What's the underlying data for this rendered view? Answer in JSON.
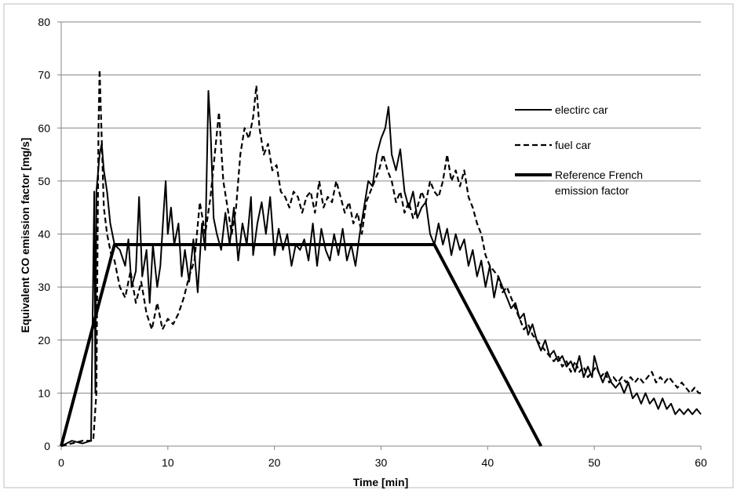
{
  "chart_data": {
    "type": "line",
    "xlabel": "Time [min]",
    "ylabel": "Equivalent CO emission factor [mg/s]",
    "xlim": [
      0,
      60
    ],
    "ylim": [
      0,
      80
    ],
    "xticks": [
      "0",
      "10",
      "20",
      "30",
      "40",
      "50",
      "60"
    ],
    "yticks": [
      "0",
      "10",
      "20",
      "30",
      "40",
      "50",
      "60",
      "70",
      "80"
    ],
    "grid": "horizontal",
    "legend_position": "right",
    "series": [
      {
        "name": "electirc car",
        "style": "solid-thin",
        "color": "#000000",
        "points": [
          [
            0,
            0
          ],
          [
            1,
            1
          ],
          [
            2,
            0.5
          ],
          [
            2.8,
            1
          ],
          [
            3.1,
            48
          ],
          [
            3.2,
            10
          ],
          [
            3.3,
            48
          ],
          [
            3.6,
            55
          ],
          [
            3.8,
            57
          ],
          [
            4.0,
            52
          ],
          [
            4.3,
            48
          ],
          [
            4.6,
            42
          ],
          [
            5,
            38
          ],
          [
            5.5,
            37
          ],
          [
            6,
            34
          ],
          [
            6.3,
            39
          ],
          [
            6.6,
            30
          ],
          [
            7,
            33
          ],
          [
            7.3,
            47
          ],
          [
            7.6,
            32
          ],
          [
            8,
            37
          ],
          [
            8.3,
            27
          ],
          [
            8.6,
            38
          ],
          [
            9,
            30
          ],
          [
            9.3,
            34
          ],
          [
            9.6,
            44
          ],
          [
            9.8,
            50
          ],
          [
            10,
            40
          ],
          [
            10.3,
            45
          ],
          [
            10.6,
            38
          ],
          [
            11,
            42
          ],
          [
            11.3,
            32
          ],
          [
            11.6,
            37
          ],
          [
            12,
            31
          ],
          [
            12.4,
            39
          ],
          [
            12.8,
            29
          ],
          [
            13.2,
            42
          ],
          [
            13.5,
            37
          ],
          [
            13.8,
            67
          ],
          [
            14,
            60
          ],
          [
            14.3,
            43
          ],
          [
            14.6,
            40
          ],
          [
            15,
            37
          ],
          [
            15.4,
            44
          ],
          [
            15.8,
            38
          ],
          [
            16.2,
            45
          ],
          [
            16.6,
            35
          ],
          [
            17,
            42
          ],
          [
            17.4,
            38
          ],
          [
            17.8,
            47
          ],
          [
            18,
            36
          ],
          [
            18.4,
            42
          ],
          [
            18.8,
            46
          ],
          [
            19.2,
            40
          ],
          [
            19.6,
            47
          ],
          [
            20,
            36
          ],
          [
            20.4,
            41
          ],
          [
            20.8,
            37
          ],
          [
            21.2,
            40
          ],
          [
            21.6,
            34
          ],
          [
            22,
            38
          ],
          [
            22.4,
            37
          ],
          [
            22.8,
            39
          ],
          [
            23.2,
            35
          ],
          [
            23.6,
            42
          ],
          [
            24,
            34
          ],
          [
            24.4,
            41
          ],
          [
            24.8,
            37
          ],
          [
            25.2,
            35
          ],
          [
            25.6,
            40
          ],
          [
            26,
            36
          ],
          [
            26.4,
            41
          ],
          [
            26.8,
            35
          ],
          [
            27.2,
            38
          ],
          [
            27.6,
            34
          ],
          [
            28,
            40
          ],
          [
            28.4,
            45
          ],
          [
            28.8,
            50
          ],
          [
            29.2,
            49
          ],
          [
            29.6,
            55
          ],
          [
            30,
            58
          ],
          [
            30.4,
            60
          ],
          [
            30.7,
            64
          ],
          [
            31,
            55
          ],
          [
            31.4,
            52
          ],
          [
            31.8,
            56
          ],
          [
            32.2,
            48
          ],
          [
            32.6,
            45
          ],
          [
            33,
            48
          ],
          [
            33.4,
            43
          ],
          [
            33.8,
            45
          ],
          [
            34.2,
            46
          ],
          [
            34.6,
            40
          ],
          [
            35,
            38
          ],
          [
            35.4,
            42
          ],
          [
            35.8,
            38
          ],
          [
            36.2,
            41
          ],
          [
            36.6,
            36
          ],
          [
            37,
            40
          ],
          [
            37.4,
            37
          ],
          [
            37.8,
            39
          ],
          [
            38.2,
            34
          ],
          [
            38.6,
            37
          ],
          [
            39,
            32
          ],
          [
            39.4,
            35
          ],
          [
            39.8,
            30
          ],
          [
            40.2,
            34
          ],
          [
            40.6,
            28
          ],
          [
            41,
            32
          ],
          [
            41.4,
            30
          ],
          [
            41.8,
            28
          ],
          [
            42.2,
            26
          ],
          [
            42.6,
            27
          ],
          [
            43,
            24
          ],
          [
            43.4,
            25
          ],
          [
            43.8,
            21
          ],
          [
            44.2,
            23
          ],
          [
            44.6,
            20
          ],
          [
            45,
            18
          ],
          [
            45.4,
            20
          ],
          [
            45.8,
            17
          ],
          [
            46.2,
            18
          ],
          [
            46.6,
            16
          ],
          [
            47,
            17
          ],
          [
            47.4,
            15
          ],
          [
            47.8,
            16
          ],
          [
            48.2,
            14
          ],
          [
            48.6,
            17
          ],
          [
            49,
            13
          ],
          [
            49.4,
            15
          ],
          [
            49.8,
            13
          ],
          [
            50,
            17
          ],
          [
            50.4,
            14
          ],
          [
            50.8,
            12
          ],
          [
            51.2,
            14
          ],
          [
            51.6,
            12
          ],
          [
            52,
            11
          ],
          [
            52.4,
            12
          ],
          [
            52.8,
            10
          ],
          [
            53.2,
            12
          ],
          [
            53.6,
            9
          ],
          [
            54,
            10
          ],
          [
            54.4,
            8
          ],
          [
            54.8,
            10
          ],
          [
            55.2,
            8
          ],
          [
            55.6,
            9
          ],
          [
            56,
            7
          ],
          [
            56.4,
            9
          ],
          [
            56.8,
            7
          ],
          [
            57.2,
            8
          ],
          [
            57.6,
            6
          ],
          [
            58,
            7
          ],
          [
            58.4,
            6
          ],
          [
            58.8,
            7
          ],
          [
            59.2,
            6
          ],
          [
            59.6,
            7
          ],
          [
            60,
            6
          ]
        ]
      },
      {
        "name": "fuel car",
        "style": "dashed",
        "color": "#000000",
        "points": [
          [
            0,
            0
          ],
          [
            1,
            0.5
          ],
          [
            2,
            1
          ],
          [
            3,
            1
          ],
          [
            3.3,
            10
          ],
          [
            3.5,
            60
          ],
          [
            3.6,
            71
          ],
          [
            3.8,
            58
          ],
          [
            4.0,
            45
          ],
          [
            4.3,
            40
          ],
          [
            4.7,
            36
          ],
          [
            5,
            35
          ],
          [
            5.5,
            30
          ],
          [
            6,
            28
          ],
          [
            6.5,
            33
          ],
          [
            7,
            27
          ],
          [
            7.5,
            31
          ],
          [
            8,
            25
          ],
          [
            8.5,
            22
          ],
          [
            9,
            27
          ],
          [
            9.5,
            22
          ],
          [
            10,
            24
          ],
          [
            10.5,
            23
          ],
          [
            11,
            25
          ],
          [
            11.5,
            28
          ],
          [
            12,
            32
          ],
          [
            12.5,
            35
          ],
          [
            13,
            46
          ],
          [
            13.5,
            40
          ],
          [
            14,
            47
          ],
          [
            14.4,
            55
          ],
          [
            14.8,
            63
          ],
          [
            15.2,
            50
          ],
          [
            15.6,
            45
          ],
          [
            16,
            40
          ],
          [
            16.4,
            45
          ],
          [
            16.8,
            55
          ],
          [
            17.2,
            60
          ],
          [
            17.6,
            58
          ],
          [
            18,
            62
          ],
          [
            18.3,
            68
          ],
          [
            18.6,
            60
          ],
          [
            19,
            55
          ],
          [
            19.4,
            57
          ],
          [
            19.8,
            52
          ],
          [
            20.2,
            53
          ],
          [
            20.6,
            48
          ],
          [
            21,
            47
          ],
          [
            21.4,
            45
          ],
          [
            21.8,
            48
          ],
          [
            22.2,
            47
          ],
          [
            22.6,
            44
          ],
          [
            23,
            47
          ],
          [
            23.4,
            48
          ],
          [
            23.8,
            44
          ],
          [
            24.2,
            50
          ],
          [
            24.6,
            45
          ],
          [
            25,
            47
          ],
          [
            25.4,
            46
          ],
          [
            25.8,
            50
          ],
          [
            26.2,
            47
          ],
          [
            26.6,
            44
          ],
          [
            27,
            46
          ],
          [
            27.4,
            42
          ],
          [
            27.8,
            44
          ],
          [
            28.2,
            40
          ],
          [
            28.6,
            46
          ],
          [
            29,
            48
          ],
          [
            29.4,
            50
          ],
          [
            29.8,
            52
          ],
          [
            30.2,
            55
          ],
          [
            30.6,
            52
          ],
          [
            31,
            50
          ],
          [
            31.4,
            46
          ],
          [
            31.8,
            48
          ],
          [
            32.2,
            44
          ],
          [
            32.6,
            46
          ],
          [
            33,
            43
          ],
          [
            33.4,
            45
          ],
          [
            33.8,
            48
          ],
          [
            34.2,
            46
          ],
          [
            34.6,
            50
          ],
          [
            35,
            48
          ],
          [
            35.4,
            47
          ],
          [
            35.8,
            50
          ],
          [
            36.2,
            55
          ],
          [
            36.6,
            50
          ],
          [
            37,
            52
          ],
          [
            37.4,
            49
          ],
          [
            37.8,
            52
          ],
          [
            38.2,
            47
          ],
          [
            38.6,
            45
          ],
          [
            39,
            42
          ],
          [
            39.4,
            40
          ],
          [
            39.8,
            36
          ],
          [
            40.2,
            34
          ],
          [
            40.6,
            33
          ],
          [
            41,
            32
          ],
          [
            41.4,
            29
          ],
          [
            41.8,
            30
          ],
          [
            42.2,
            28
          ],
          [
            42.6,
            26
          ],
          [
            43,
            24
          ],
          [
            43.4,
            22
          ],
          [
            43.8,
            23
          ],
          [
            44.2,
            21
          ],
          [
            44.6,
            20
          ],
          [
            45,
            19
          ],
          [
            45.4,
            18
          ],
          [
            45.8,
            17
          ],
          [
            46.2,
            16
          ],
          [
            46.6,
            17
          ],
          [
            47,
            15
          ],
          [
            47.4,
            16
          ],
          [
            47.8,
            14
          ],
          [
            48.2,
            16
          ],
          [
            48.6,
            14
          ],
          [
            49,
            15
          ],
          [
            49.4,
            13
          ],
          [
            49.8,
            14
          ],
          [
            50.2,
            15
          ],
          [
            50.6,
            13
          ],
          [
            51,
            14
          ],
          [
            51.4,
            12
          ],
          [
            51.8,
            13
          ],
          [
            52.2,
            12
          ],
          [
            52.6,
            13
          ],
          [
            53,
            12
          ],
          [
            53.4,
            13
          ],
          [
            53.8,
            12
          ],
          [
            54.2,
            13
          ],
          [
            54.6,
            12
          ],
          [
            55,
            13
          ],
          [
            55.4,
            14
          ],
          [
            55.8,
            12
          ],
          [
            56.2,
            13
          ],
          [
            56.6,
            12
          ],
          [
            57,
            13
          ],
          [
            57.4,
            12
          ],
          [
            57.8,
            11
          ],
          [
            58.2,
            12
          ],
          [
            58.6,
            11
          ],
          [
            59,
            10
          ],
          [
            59.4,
            11
          ],
          [
            59.8,
            10
          ],
          [
            60,
            10
          ]
        ]
      },
      {
        "name": "Reference French emission factor",
        "style": "solid-thick",
        "color": "#000000",
        "points": [
          [
            0,
            0
          ],
          [
            5,
            38
          ],
          [
            35,
            38
          ],
          [
            45,
            0
          ]
        ]
      }
    ]
  },
  "legend": {
    "items": [
      {
        "label_lines": [
          "electirc car"
        ]
      },
      {
        "label_lines": [
          "fuel car"
        ]
      },
      {
        "label_lines": [
          "Reference French",
          "emission factor"
        ]
      }
    ]
  }
}
